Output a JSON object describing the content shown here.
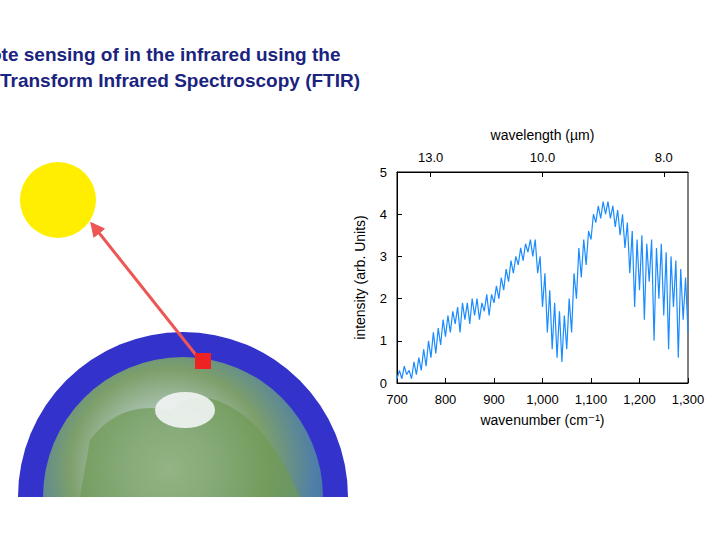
{
  "chart_data": {
    "type": "line",
    "title": "Remote sensing of in the infrared using the\nFourier Transform Infrared Spectroscopy (FTIR)",
    "xlabel": "wavenumber (cm⁻¹)",
    "ylabel": "intensity (arb. Units)",
    "x2label": "wavelength (µm)",
    "color": "#1a8cff",
    "grid": false,
    "xlim": [
      700,
      1300
    ],
    "xticks": [
      700,
      800,
      900,
      1000,
      1100,
      1200,
      1300
    ],
    "x2lim": [
      700,
      1300
    ],
    "x2ticks": [
      {
        "value": 769.23,
        "label": "13.0"
      },
      {
        "value": 1000,
        "label": "10.0"
      },
      {
        "value": 1250,
        "label": "8.0"
      }
    ],
    "ylim": [
      0,
      5
    ],
    "yticks": [
      0,
      1,
      2,
      3,
      4,
      5
    ],
    "x": [
      700,
      705,
      710,
      715,
      720,
      725,
      730,
      735,
      740,
      745,
      750,
      755,
      760,
      765,
      770,
      775,
      780,
      785,
      790,
      795,
      800,
      805,
      810,
      815,
      820,
      825,
      830,
      835,
      840,
      845,
      850,
      855,
      860,
      865,
      870,
      875,
      880,
      885,
      890,
      895,
      900,
      905,
      910,
      915,
      920,
      925,
      930,
      935,
      940,
      945,
      950,
      955,
      960,
      965,
      970,
      975,
      980,
      985,
      990,
      995,
      1000,
      1005,
      1010,
      1015,
      1020,
      1025,
      1030,
      1035,
      1040,
      1045,
      1050,
      1055,
      1060,
      1065,
      1070,
      1075,
      1080,
      1085,
      1090,
      1095,
      1100,
      1105,
      1110,
      1115,
      1120,
      1125,
      1130,
      1135,
      1140,
      1145,
      1150,
      1155,
      1160,
      1165,
      1170,
      1175,
      1180,
      1185,
      1190,
      1195,
      1200,
      1205,
      1210,
      1215,
      1220,
      1225,
      1230,
      1235,
      1240,
      1245,
      1250,
      1255,
      1260,
      1265,
      1270,
      1275,
      1280,
      1285,
      1290,
      1295,
      1300
    ],
    "values": [
      0.1,
      0.3,
      0.1,
      0.4,
      0.2,
      0.3,
      0.1,
      0.5,
      0.2,
      0.6,
      0.3,
      0.8,
      0.4,
      1.0,
      0.6,
      1.2,
      0.7,
      1.3,
      0.9,
      1.5,
      1.1,
      1.6,
      1.2,
      1.7,
      1.4,
      1.8,
      1.2,
      1.9,
      1.5,
      1.9,
      1.4,
      2.0,
      1.6,
      2.0,
      1.5,
      1.9,
      1.7,
      2.1,
      1.6,
      2.1,
      1.9,
      2.3,
      2.0,
      2.5,
      2.2,
      2.7,
      2.4,
      2.9,
      2.6,
      3.0,
      2.8,
      3.2,
      2.9,
      3.3,
      3.1,
      3.4,
      3.0,
      3.4,
      2.6,
      3.0,
      1.8,
      2.6,
      1.2,
      2.2,
      0.8,
      1.9,
      0.6,
      1.7,
      0.5,
      1.6,
      0.8,
      2.0,
      1.2,
      2.6,
      2.0,
      3.2,
      2.5,
      3.4,
      2.8,
      3.6,
      3.4,
      4.0,
      3.8,
      4.2,
      3.9,
      4.3,
      4.0,
      4.3,
      3.9,
      4.2,
      3.7,
      4.1,
      3.5,
      4.0,
      3.2,
      3.8,
      2.6,
      3.6,
      1.8,
      3.4,
      2.2,
      3.5,
      1.5,
      3.3,
      2.4,
      3.4,
      1.0,
      3.2,
      2.0,
      3.3,
      1.6,
      3.1,
      0.8,
      3.0,
      1.8,
      2.9,
      0.6,
      2.7,
      1.5,
      2.5,
      1.2
    ]
  }
}
